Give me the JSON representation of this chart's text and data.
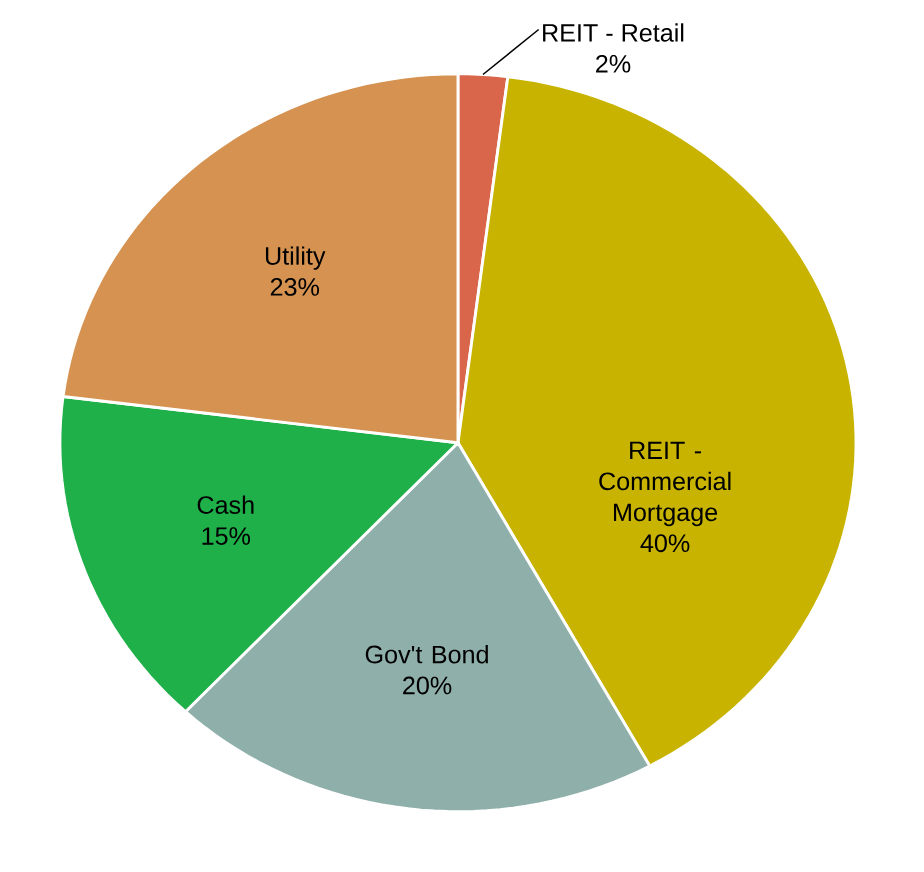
{
  "chart_data": {
    "type": "pie",
    "categories": [
      "REIT - Retail",
      "REIT - Commercial Mortgage",
      "Gov't Bond",
      "Cash",
      "Utility"
    ],
    "values": [
      2,
      40,
      20,
      15,
      23
    ],
    "value_labels": [
      "2%",
      "40%",
      "20%",
      "15%",
      "23%"
    ],
    "colors": [
      "#d9654b",
      "#c8b400",
      "#8fb0aa",
      "#1fb04a",
      "#d59250"
    ]
  }
}
